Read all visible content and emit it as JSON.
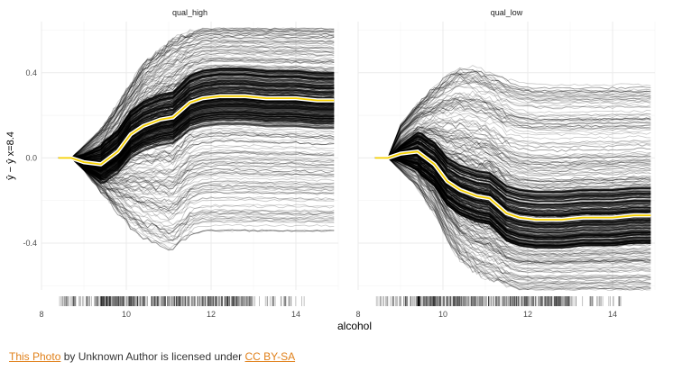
{
  "chart_data": {
    "type": "line",
    "xlabel": "alcohol",
    "ylabel": "ŷ − ŷ x=8.4",
    "xlim": [
      8,
      15
    ],
    "ylim": [
      -0.62,
      0.64
    ],
    "x_ticks": [
      8,
      10,
      12,
      14
    ],
    "y_ticks": [
      -0.4,
      0.0,
      0.4
    ],
    "grid": true,
    "colors": {
      "ice_lines": "#000000",
      "average_line": "#f5d000",
      "average_outline": "#ffffff",
      "grid": "#ebebeb"
    },
    "facets": [
      {
        "label": "qual_high",
        "average_line": {
          "x": [
            8.4,
            8.7,
            9.0,
            9.4,
            9.8,
            10.1,
            10.4,
            10.8,
            11.1,
            11.5,
            11.8,
            12.2,
            12.8,
            13.3,
            14.0,
            14.5,
            14.9
          ],
          "y": [
            0.0,
            0.0,
            -0.02,
            -0.03,
            0.03,
            0.11,
            0.15,
            0.18,
            0.19,
            0.26,
            0.28,
            0.29,
            0.29,
            0.28,
            0.28,
            0.27,
            0.27
          ]
        },
        "ice_summary": {
          "x": [
            8.4,
            8.7,
            9.0,
            9.4,
            9.8,
            10.1,
            10.4,
            10.8,
            11.1,
            11.5,
            11.8,
            12.2,
            12.8,
            13.3,
            14.0,
            14.5,
            14.9
          ],
          "upper": [
            0.0,
            0.0,
            0.06,
            0.14,
            0.26,
            0.35,
            0.45,
            0.52,
            0.57,
            0.6,
            0.62,
            0.62,
            0.62,
            0.62,
            0.62,
            0.62,
            0.62
          ],
          "lower": [
            0.0,
            0.0,
            -0.06,
            -0.16,
            -0.26,
            -0.33,
            -0.38,
            -0.42,
            -0.44,
            -0.37,
            -0.35,
            -0.35,
            -0.35,
            -0.35,
            -0.35,
            -0.35,
            -0.35
          ]
        }
      },
      {
        "label": "qual_low",
        "average_line": {
          "x": [
            8.4,
            8.7,
            9.0,
            9.4,
            9.8,
            10.1,
            10.4,
            10.8,
            11.1,
            11.5,
            11.8,
            12.2,
            12.8,
            13.3,
            14.0,
            14.5,
            14.9
          ],
          "y": [
            0.0,
            0.0,
            0.02,
            0.03,
            -0.03,
            -0.11,
            -0.15,
            -0.18,
            -0.19,
            -0.26,
            -0.28,
            -0.29,
            -0.29,
            -0.28,
            -0.28,
            -0.27,
            -0.27
          ]
        },
        "ice_summary": {
          "x": [
            8.4,
            8.7,
            9.0,
            9.4,
            9.8,
            10.1,
            10.4,
            10.8,
            11.1,
            11.5,
            11.8,
            12.2,
            12.8,
            13.3,
            14.0,
            14.5,
            14.9
          ],
          "upper": [
            0.0,
            0.0,
            0.16,
            0.26,
            0.34,
            0.4,
            0.44,
            0.43,
            0.41,
            0.38,
            0.36,
            0.35,
            0.35,
            0.35,
            0.35,
            0.35,
            0.35
          ],
          "lower": [
            0.0,
            0.0,
            -0.06,
            -0.14,
            -0.26,
            -0.38,
            -0.48,
            -0.54,
            -0.57,
            -0.6,
            -0.62,
            -0.62,
            -0.62,
            -0.62,
            -0.62,
            -0.62,
            -0.62
          ]
        }
      }
    ]
  },
  "attribution": {
    "link1": "This Photo",
    "middle": " by Unknown Author is licensed under ",
    "link2": "CC BY-SA"
  }
}
